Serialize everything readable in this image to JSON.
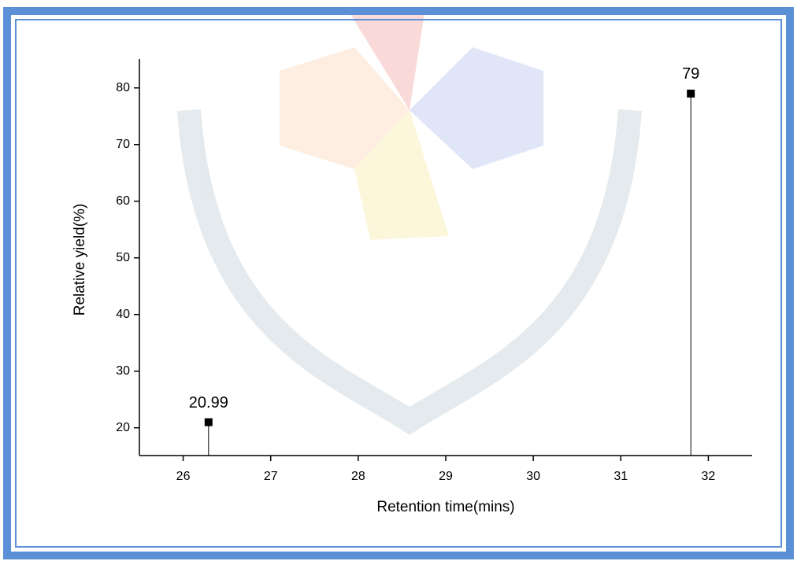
{
  "chart_data": {
    "type": "stem",
    "x_label": "Retention time(mins)",
    "y_label": "Relative yield(%)",
    "x": [
      26.29,
      31.8
    ],
    "values": [
      20.99,
      79
    ],
    "value_labels": [
      "20.99",
      "79"
    ],
    "color": "#000000",
    "xlim": [
      25.5,
      32.5
    ],
    "xticks": [
      26,
      27,
      28,
      29,
      30,
      31,
      32
    ],
    "ylim": [
      15.1,
      85.1
    ],
    "yticks": [
      20,
      30,
      40,
      50,
      60,
      70,
      80
    ]
  }
}
